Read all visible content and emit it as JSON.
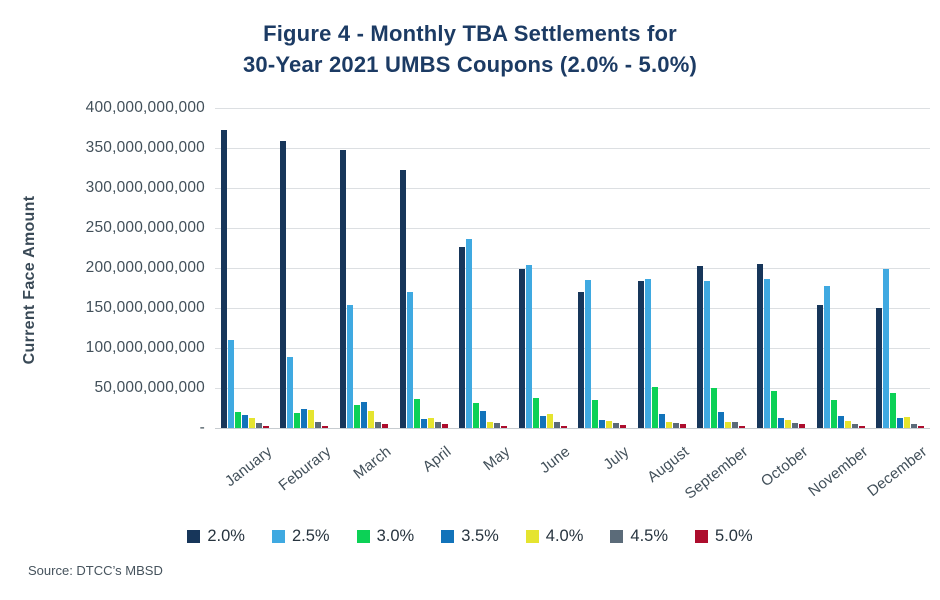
{
  "title": {
    "line1": "Figure 4 - Monthly TBA Settlements for",
    "line2": "30-Year 2021 UMBS Coupons (2.0% - 5.0%)"
  },
  "source": "Source: DTCC’s MBSD",
  "colors": {
    "title": "#1c3b64",
    "axis_text": "#42505a",
    "grid": "#dcdfe2",
    "baseline": "#c7ccd0",
    "background": "#ffffff"
  },
  "chart_data": {
    "type": "bar",
    "title": "Figure 4 - Monthly TBA Settlements for 30-Year 2021 UMBS Coupons (2.0% - 5.0%)",
    "xlabel": "",
    "ylabel": "Current Face Amount",
    "ylim": [
      0,
      400000000000
    ],
    "ytick_interval": 50000000000,
    "ytick_labels": [
      "400,000,000,000",
      "350,000,000,000",
      "300,000,000,000",
      "250,000,000,000",
      "200,000,000,000",
      "150,000,000,000",
      "100,000,000,000",
      "50,000,000,000",
      "-"
    ],
    "grid": true,
    "legend_position": "bottom",
    "categories": [
      "January",
      "Feburary",
      "March",
      "April",
      "May",
      "June",
      "July",
      "August",
      "September",
      "October",
      "November",
      "December"
    ],
    "series": [
      {
        "name": "2.0%",
        "color": "#17365a",
        "values": [
          372000000000,
          359000000000,
          347000000000,
          322000000000,
          226000000000,
          199000000000,
          170000000000,
          184000000000,
          203000000000,
          205000000000,
          154000000000,
          150000000000
        ]
      },
      {
        "name": "2.5%",
        "color": "#3fa9e1",
        "values": [
          110000000000,
          89000000000,
          154000000000,
          170000000000,
          236000000000,
          204000000000,
          185000000000,
          186000000000,
          184000000000,
          186000000000,
          178000000000,
          199000000000
        ]
      },
      {
        "name": "3.0%",
        "color": "#0cd156",
        "values": [
          20000000000,
          19000000000,
          29000000000,
          36000000000,
          31000000000,
          37000000000,
          35000000000,
          51000000000,
          50000000000,
          46000000000,
          35000000000,
          44000000000
        ]
      },
      {
        "name": "3.5%",
        "color": "#1273ba",
        "values": [
          16000000000,
          24000000000,
          32000000000,
          11000000000,
          21000000000,
          15000000000,
          10000000000,
          18000000000,
          20000000000,
          13000000000,
          15000000000,
          12000000000
        ]
      },
      {
        "name": "4.0%",
        "color": "#e5e42f",
        "values": [
          13000000000,
          22000000000,
          21000000000,
          13000000000,
          8000000000,
          17000000000,
          9000000000,
          8000000000,
          8000000000,
          10000000000,
          9000000000,
          14000000000
        ]
      },
      {
        "name": "4.5%",
        "color": "#5b6b79",
        "values": [
          6000000000,
          7000000000,
          7000000000,
          8000000000,
          6000000000,
          7000000000,
          6000000000,
          6000000000,
          7000000000,
          6000000000,
          5000000000,
          5000000000
        ]
      },
      {
        "name": "5.0%",
        "color": "#ad0d2d",
        "values": [
          2000000000,
          2000000000,
          5000000000,
          5000000000,
          3000000000,
          3000000000,
          4000000000,
          5000000000,
          3000000000,
          5000000000,
          3000000000,
          3000000000
        ]
      }
    ]
  }
}
